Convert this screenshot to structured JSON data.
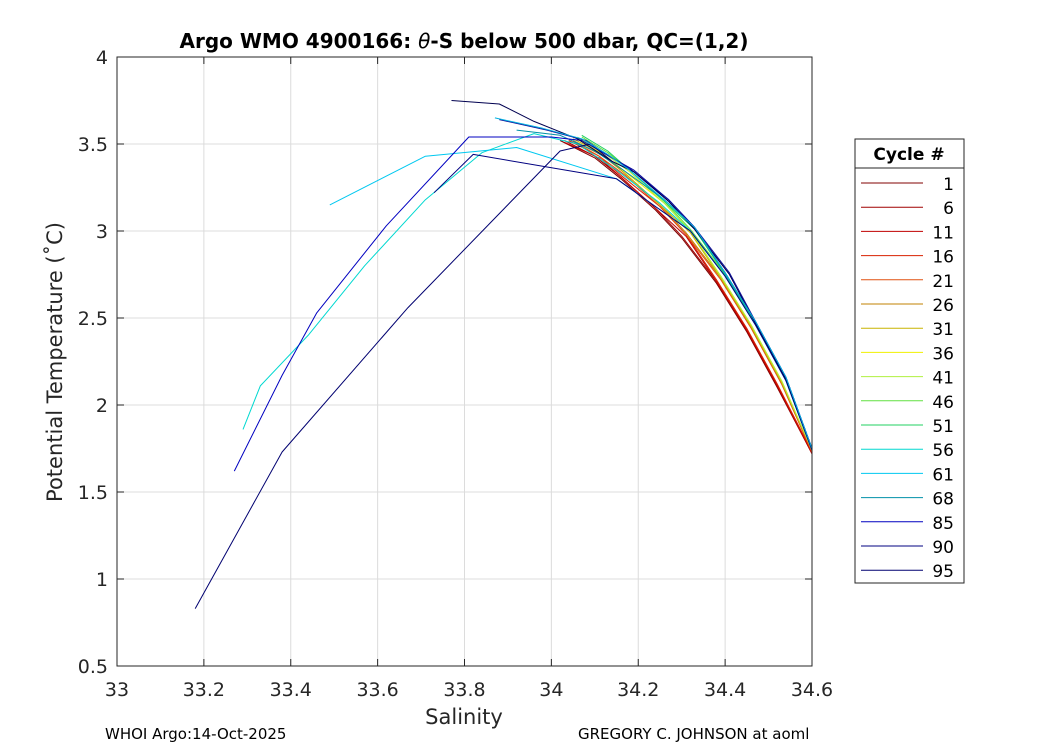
{
  "footer": {
    "left": "WHOI Argo:14-Oct-2025",
    "right": "GREGORY C. JOHNSON at aoml"
  },
  "chart_data": {
    "type": "line",
    "title": "Argo WMO 4900166: θ-S below 500 dbar,  QC=(1,2)",
    "title_parts": {
      "before": "Argo WMO 4900166: ",
      "theta": "θ",
      "after": "-S below 500 dbar,  QC=(1,2)"
    },
    "xlabel": "Salinity",
    "ylabel": "Potential Temperature (˚C)",
    "xlim": [
      33,
      34.6
    ],
    "ylim": [
      0.5,
      4
    ],
    "xticks": [
      33,
      33.2,
      33.4,
      33.6,
      33.8,
      34,
      34.2,
      34.4,
      34.6
    ],
    "xtick_labels": [
      "33",
      "33.2",
      "33.4",
      "33.6",
      "33.8",
      "34",
      "34.2",
      "34.4",
      "34.6"
    ],
    "yticks": [
      0.5,
      1,
      1.5,
      2,
      2.5,
      3,
      3.5,
      4
    ],
    "ytick_labels": [
      "0.5",
      "1",
      "1.5",
      "2",
      "2.5",
      "3",
      "3.5",
      "4"
    ],
    "grid": true,
    "legend": {
      "title": "Cycle #",
      "placement": "outside-right"
    },
    "series": [
      {
        "name": "1",
        "color": "#800000",
        "points": [
          [
            34.02,
            3.52
          ],
          [
            34.1,
            3.42
          ],
          [
            34.16,
            3.3
          ],
          [
            34.24,
            3.12
          ],
          [
            34.3,
            2.96
          ],
          [
            34.38,
            2.7
          ],
          [
            34.45,
            2.42
          ],
          [
            34.52,
            2.1
          ],
          [
            34.6,
            1.72
          ]
        ]
      },
      {
        "name": "6",
        "color": "#a00000",
        "points": [
          [
            34.03,
            3.52
          ],
          [
            34.1,
            3.43
          ],
          [
            34.16,
            3.31
          ],
          [
            34.24,
            3.13
          ],
          [
            34.3,
            2.97
          ],
          [
            34.38,
            2.71
          ],
          [
            34.45,
            2.43
          ],
          [
            34.52,
            2.11
          ],
          [
            34.6,
            1.72
          ]
        ]
      },
      {
        "name": "11",
        "color": "#c00000",
        "points": [
          [
            34.03,
            3.51
          ],
          [
            34.11,
            3.42
          ],
          [
            34.16,
            3.31
          ],
          [
            34.24,
            3.13
          ],
          [
            34.31,
            2.97
          ],
          [
            34.38,
            2.71
          ],
          [
            34.45,
            2.43
          ],
          [
            34.52,
            2.11
          ],
          [
            34.6,
            1.72
          ]
        ]
      },
      {
        "name": "16",
        "color": "#d82000",
        "points": [
          [
            34.04,
            3.52
          ],
          [
            34.11,
            3.43
          ],
          [
            34.16,
            3.32
          ],
          [
            34.25,
            3.14
          ],
          [
            34.31,
            2.98
          ],
          [
            34.38,
            2.72
          ],
          [
            34.45,
            2.44
          ],
          [
            34.52,
            2.12
          ],
          [
            34.6,
            1.73
          ]
        ]
      },
      {
        "name": "21",
        "color": "#e05010",
        "points": [
          [
            34.04,
            3.53
          ],
          [
            34.11,
            3.43
          ],
          [
            34.17,
            3.32
          ],
          [
            34.25,
            3.14
          ],
          [
            34.31,
            2.98
          ],
          [
            34.39,
            2.72
          ],
          [
            34.46,
            2.44
          ],
          [
            34.53,
            2.12
          ],
          [
            34.6,
            1.73
          ]
        ]
      },
      {
        "name": "26",
        "color": "#c08000",
        "points": [
          [
            34.05,
            3.52
          ],
          [
            34.12,
            3.43
          ],
          [
            34.17,
            3.33
          ],
          [
            34.25,
            3.15
          ],
          [
            34.31,
            2.99
          ],
          [
            34.39,
            2.73
          ],
          [
            34.46,
            2.45
          ],
          [
            34.53,
            2.13
          ],
          [
            34.6,
            1.74
          ]
        ]
      },
      {
        "name": "31",
        "color": "#c8b400",
        "points": [
          [
            34.05,
            3.53
          ],
          [
            34.12,
            3.44
          ],
          [
            34.17,
            3.33
          ],
          [
            34.25,
            3.15
          ],
          [
            34.32,
            2.99
          ],
          [
            34.39,
            2.73
          ],
          [
            34.46,
            2.45
          ],
          [
            34.53,
            2.13
          ],
          [
            34.6,
            1.74
          ]
        ]
      },
      {
        "name": "36",
        "color": "#f0f000",
        "points": [
          [
            34.06,
            3.53
          ],
          [
            34.12,
            3.44
          ],
          [
            34.17,
            3.34
          ],
          [
            34.26,
            3.16
          ],
          [
            34.32,
            3.0
          ],
          [
            34.39,
            2.74
          ],
          [
            34.46,
            2.46
          ],
          [
            34.53,
            2.14
          ],
          [
            34.6,
            1.74
          ]
        ]
      },
      {
        "name": "41",
        "color": "#b0f040",
        "points": [
          [
            34.06,
            3.54
          ],
          [
            34.12,
            3.45
          ],
          [
            34.18,
            3.34
          ],
          [
            34.26,
            3.16
          ],
          [
            34.32,
            3.0
          ],
          [
            34.39,
            2.74
          ],
          [
            34.46,
            2.46
          ],
          [
            34.53,
            2.14
          ],
          [
            34.6,
            1.74
          ]
        ]
      },
      {
        "name": "46",
        "color": "#60e040",
        "points": [
          [
            34.07,
            3.54
          ],
          [
            34.13,
            3.45
          ],
          [
            34.18,
            3.35
          ],
          [
            34.26,
            3.17
          ],
          [
            34.32,
            3.01
          ],
          [
            34.4,
            2.75
          ],
          [
            34.47,
            2.47
          ],
          [
            34.54,
            2.15
          ],
          [
            34.6,
            1.75
          ]
        ]
      },
      {
        "name": "51",
        "color": "#20d060",
        "points": [
          [
            34.07,
            3.55
          ],
          [
            34.13,
            3.46
          ],
          [
            34.18,
            3.35
          ],
          [
            34.26,
            3.17
          ],
          [
            34.33,
            3.01
          ],
          [
            34.4,
            2.75
          ],
          [
            34.47,
            2.47
          ],
          [
            34.54,
            2.15
          ],
          [
            34.6,
            1.75
          ]
        ]
      },
      {
        "name": "56",
        "color": "#00d8d0",
        "points": [
          [
            33.29,
            1.86
          ],
          [
            33.33,
            2.11
          ],
          [
            33.44,
            2.4
          ],
          [
            33.57,
            2.8
          ],
          [
            33.71,
            3.18
          ],
          [
            33.84,
            3.45
          ],
          [
            33.96,
            3.56
          ],
          [
            34.06,
            3.5
          ],
          [
            34.15,
            3.35
          ],
          [
            34.25,
            3.16
          ],
          [
            34.32,
            3.0
          ],
          [
            34.4,
            2.74
          ],
          [
            34.47,
            2.46
          ],
          [
            34.54,
            2.14
          ],
          [
            34.6,
            1.74
          ]
        ]
      },
      {
        "name": "61",
        "color": "#00c8f0",
        "points": [
          [
            33.49,
            3.15
          ],
          [
            33.71,
            3.43
          ],
          [
            33.92,
            3.48
          ],
          [
            34.15,
            3.3
          ],
          [
            34.24,
            3.14
          ],
          [
            34.32,
            3.0
          ],
          [
            34.4,
            2.74
          ],
          [
            34.47,
            2.46
          ],
          [
            34.54,
            2.14
          ],
          [
            34.6,
            1.74
          ]
        ]
      },
      {
        "name": "68",
        "color": "#0090a8",
        "points": [
          [
            33.92,
            3.58
          ],
          [
            34.02,
            3.55
          ],
          [
            34.1,
            3.46
          ],
          [
            34.16,
            3.36
          ],
          [
            34.26,
            3.18
          ],
          [
            34.33,
            3.02
          ],
          [
            34.4,
            2.76
          ],
          [
            34.47,
            2.48
          ],
          [
            34.54,
            2.16
          ],
          [
            34.6,
            1.75
          ]
        ]
      },
      {
        "name": "85",
        "color": "#0000c0",
        "points": [
          [
            33.27,
            1.62
          ],
          [
            33.38,
            2.17
          ],
          [
            33.46,
            2.53
          ],
          [
            33.62,
            3.03
          ],
          [
            33.81,
            3.54
          ],
          [
            34.0,
            3.54
          ],
          [
            34.07,
            3.52
          ],
          [
            34.14,
            3.42
          ],
          [
            34.18,
            3.36
          ],
          [
            34.27,
            3.18
          ],
          [
            34.33,
            3.02
          ],
          [
            34.4,
            2.76
          ],
          [
            34.47,
            2.48
          ],
          [
            34.54,
            2.16
          ],
          [
            34.6,
            1.75
          ]
        ]
      },
      {
        "name": "90",
        "color": "#000080",
        "points": [
          [
            33.73,
            3.22
          ],
          [
            33.82,
            3.44
          ],
          [
            34.15,
            3.3
          ],
          [
            34.24,
            3.14
          ],
          [
            34.32,
            3.0
          ],
          [
            34.4,
            2.74
          ],
          [
            34.47,
            2.46
          ],
          [
            34.54,
            2.14
          ],
          [
            34.6,
            1.74
          ]
        ]
      },
      {
        "name": "95",
        "color": "#000070",
        "points": [
          [
            33.18,
            0.83
          ],
          [
            33.38,
            1.73
          ],
          [
            33.67,
            2.56
          ],
          [
            34.02,
            3.46
          ],
          [
            34.09,
            3.5
          ],
          [
            34.14,
            3.4
          ],
          [
            34.19,
            3.34
          ],
          [
            34.27,
            3.17
          ],
          [
            34.33,
            3.01
          ],
          [
            34.41,
            2.75
          ],
          [
            34.47,
            2.47
          ],
          [
            34.54,
            2.15
          ],
          [
            34.6,
            1.75
          ]
        ]
      },
      {
        "name": "",
        "color": "#000050",
        "points": [
          [
            33.77,
            3.75
          ],
          [
            33.88,
            3.73
          ],
          [
            33.96,
            3.63
          ],
          [
            34.06,
            3.53
          ],
          [
            34.14,
            3.4
          ],
          [
            34.19,
            3.34
          ],
          [
            34.27,
            3.17
          ],
          [
            34.33,
            3.01
          ],
          [
            34.41,
            2.75
          ],
          [
            34.47,
            2.47
          ],
          [
            34.54,
            2.15
          ],
          [
            34.6,
            1.75
          ]
        ]
      },
      {
        "name": "",
        "color": "#10109a",
        "points": [
          [
            33.88,
            3.64
          ],
          [
            33.99,
            3.58
          ],
          [
            34.08,
            3.52
          ],
          [
            34.14,
            3.42
          ],
          [
            34.19,
            3.35
          ],
          [
            34.27,
            3.18
          ],
          [
            34.33,
            3.02
          ],
          [
            34.41,
            2.76
          ],
          [
            34.47,
            2.48
          ],
          [
            34.54,
            2.16
          ],
          [
            34.6,
            1.75
          ]
        ]
      },
      {
        "name": "",
        "color": "#00b0e0",
        "points": [
          [
            33.87,
            3.65
          ],
          [
            33.98,
            3.59
          ],
          [
            34.07,
            3.53
          ],
          [
            34.13,
            3.44
          ],
          [
            34.18,
            3.35
          ],
          [
            34.26,
            3.18
          ],
          [
            34.33,
            3.02
          ],
          [
            34.4,
            2.76
          ],
          [
            34.47,
            2.48
          ],
          [
            34.54,
            2.16
          ],
          [
            34.6,
            1.75
          ]
        ]
      }
    ]
  }
}
